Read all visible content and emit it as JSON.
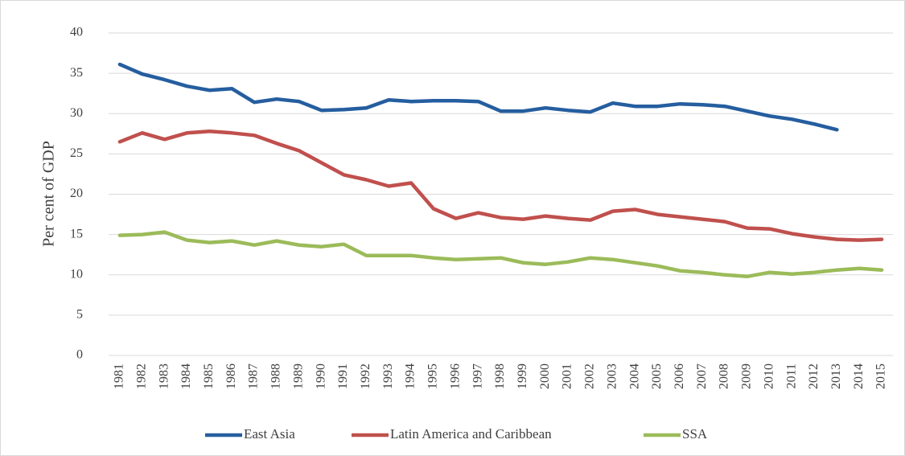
{
  "chart_data": {
    "type": "line",
    "y_label": "Per cent of GDP",
    "categories": [
      "1981",
      "1982",
      "1983",
      "1984",
      "1985",
      "1986",
      "1987",
      "1988",
      "1989",
      "1990",
      "1991",
      "1992",
      "1993",
      "1994",
      "1995",
      "1996",
      "1997",
      "1998",
      "1999",
      "2000",
      "2001",
      "2002",
      "2003",
      "2004",
      "2005",
      "2006",
      "2007",
      "2008",
      "2009",
      "2010",
      "2011",
      "2012",
      "2013",
      "2014",
      "2015"
    ],
    "series": [
      {
        "name": "East Asia",
        "color": "#255e9f",
        "values": [
          36.1,
          34.9,
          34.2,
          33.4,
          32.9,
          33.1,
          31.4,
          31.8,
          31.5,
          30.4,
          30.5,
          30.7,
          31.7,
          31.5,
          31.6,
          31.6,
          31.5,
          30.3,
          30.3,
          30.7,
          30.4,
          30.2,
          31.3,
          30.9,
          30.9,
          31.2,
          31.1,
          30.9,
          30.3,
          29.7,
          29.3,
          28.7,
          28.0,
          null,
          null
        ]
      },
      {
        "name": "Latin America and Caribbean",
        "color": "#c0504d",
        "values": [
          26.5,
          27.6,
          26.8,
          27.6,
          27.8,
          27.6,
          27.3,
          26.3,
          25.4,
          23.9,
          22.4,
          21.8,
          21.0,
          21.4,
          18.2,
          17.0,
          17.7,
          17.1,
          16.9,
          17.3,
          17.0,
          16.8,
          17.9,
          18.1,
          17.5,
          17.2,
          16.9,
          16.6,
          15.8,
          15.7,
          15.1,
          14.7,
          14.4,
          14.3,
          14.4
        ]
      },
      {
        "name": "SSA",
        "color": "#9bbb59",
        "values": [
          14.9,
          15.0,
          15.3,
          14.3,
          14.0,
          14.2,
          13.7,
          14.2,
          13.7,
          13.5,
          13.8,
          12.4,
          12.4,
          12.4,
          12.1,
          11.9,
          12.0,
          12.1,
          11.5,
          11.3,
          11.6,
          12.1,
          11.9,
          11.5,
          11.1,
          10.5,
          10.3,
          10.0,
          9.8,
          10.3,
          10.1,
          10.3,
          10.6,
          10.8,
          10.6
        ]
      }
    ],
    "ylim": [
      0,
      40
    ],
    "yticks": [
      0,
      5,
      10,
      15,
      20,
      25,
      30,
      35,
      40
    ],
    "grid": true,
    "legend": "bottom"
  }
}
